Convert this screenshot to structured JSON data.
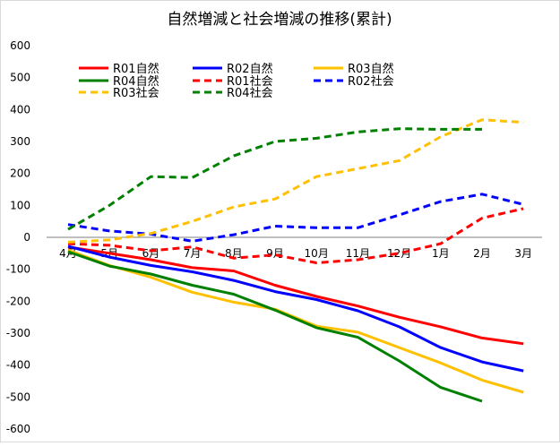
{
  "chart_data": {
    "type": "line",
    "title": "自然増減と社会増減の推移(累計)",
    "xlabel": "",
    "ylabel": "",
    "categories": [
      "4月",
      "5月",
      "6月",
      "7月",
      "8月",
      "9月",
      "10月",
      "11月",
      "12月",
      "1月",
      "2月",
      "3月"
    ],
    "y_ticks": [
      "600",
      "500",
      "400",
      "300",
      "200",
      "100",
      "0",
      "-100",
      "-200",
      "-300",
      "-400",
      "-500",
      "-600"
    ],
    "ylim": [
      -600,
      600
    ],
    "grid": false,
    "legend_position": "top-left",
    "series": [
      {
        "name": "R01自然",
        "color": "#ff0000",
        "dashed": false,
        "values": [
          -30,
          -50,
          -70,
          -95,
          -105,
          -150,
          -185,
          -215,
          -250,
          -280,
          -315,
          -333
        ]
      },
      {
        "name": "R02自然",
        "color": "#0000ff",
        "dashed": false,
        "values": [
          -28,
          -62,
          -88,
          -108,
          -135,
          -170,
          -195,
          -230,
          -280,
          -345,
          -390,
          -418
        ]
      },
      {
        "name": "R03自然",
        "color": "#ffc000",
        "dashed": false,
        "values": [
          -40,
          -88,
          -125,
          -172,
          -203,
          -225,
          -278,
          -297,
          -345,
          -393,
          -447,
          -485
        ]
      },
      {
        "name": "R04自然",
        "color": "#008000",
        "dashed": false,
        "values": [
          -45,
          -90,
          -115,
          -150,
          -178,
          -228,
          -283,
          -313,
          -387,
          -470,
          -513,
          null
        ]
      },
      {
        "name": "R01社会",
        "color": "#ff0000",
        "dashed": true,
        "values": [
          -20,
          -25,
          -42,
          -30,
          -65,
          -55,
          -80,
          -70,
          -50,
          -20,
          60,
          90
        ]
      },
      {
        "name": "R02社会",
        "color": "#0000ff",
        "dashed": true,
        "values": [
          40,
          20,
          10,
          -12,
          8,
          35,
          30,
          30,
          70,
          112,
          135,
          103
        ]
      },
      {
        "name": "R03社会",
        "color": "#ffc000",
        "dashed": true,
        "values": [
          -15,
          -8,
          12,
          50,
          95,
          120,
          190,
          215,
          240,
          315,
          368,
          360
        ]
      },
      {
        "name": "R04社会",
        "color": "#008000",
        "dashed": true,
        "values": [
          25,
          100,
          190,
          187,
          255,
          300,
          310,
          330,
          340,
          338,
          338,
          null
        ]
      }
    ]
  }
}
